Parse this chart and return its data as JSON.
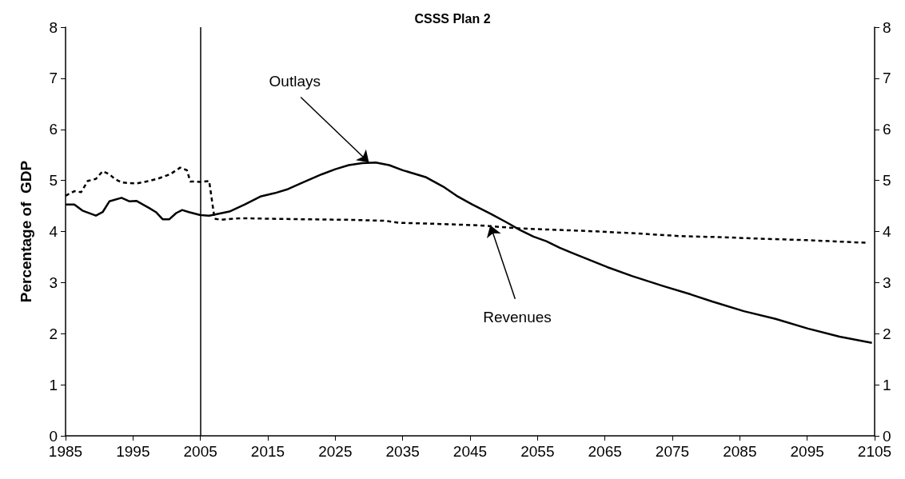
{
  "chart_data": {
    "type": "line",
    "title": "CSSS Plan 2",
    "ylabel": "Percentage of  GDP",
    "xlim": [
      1985,
      2105
    ],
    "xticks": [
      1985,
      1995,
      2005,
      2015,
      2025,
      2035,
      2045,
      2055,
      2065,
      2075,
      2085,
      2095,
      2105
    ],
    "ylim": [
      0,
      8
    ],
    "yticks": [
      0,
      1,
      2,
      3,
      4,
      5,
      6,
      7,
      8
    ],
    "y2lim": [
      0,
      8
    ],
    "y2ticks": [
      0,
      1,
      2,
      3,
      4,
      5,
      6,
      7,
      8
    ],
    "grid": false,
    "marker": "none",
    "ref_lines": [
      {
        "axis": "x",
        "value": 2005,
        "color": "#000000"
      }
    ],
    "annotations": [
      {
        "text": "Outlays",
        "x": 2030,
        "y": 5.35
      },
      {
        "text": "Revenues",
        "x": 2048,
        "y": 4.12
      }
    ],
    "series": [
      {
        "color": "#000000",
        "line_style": "solid",
        "x": [
          1985,
          1986.3,
          1987.5,
          1989.5,
          1990.5,
          1991.5,
          1993.3,
          1994.5,
          1995.5,
          1997.4,
          1998.4,
          1999.4,
          2000.4,
          2001.4,
          2002.3,
          2003.3,
          2005,
          2006.3,
          2009.3,
          2011.6,
          2014,
          2016,
          2018,
          2020,
          2023,
          2025,
          2027,
          2029,
          2031,
          2033,
          2035,
          2038.5,
          2041,
          2043,
          2045.3,
          2048,
          2050.4,
          2052.4,
          2054.4,
          2056.3,
          2058.3,
          2060.3,
          2065.4,
          2069,
          2073.7,
          2077.7,
          2080.9,
          2085.6,
          2090.3,
          2095.1,
          2099.8,
          2104.6
        ],
        "values": [
          4.53,
          4.53,
          4.41,
          4.31,
          4.38,
          4.59,
          4.66,
          4.59,
          4.6,
          4.46,
          4.38,
          4.24,
          4.24,
          4.36,
          4.42,
          4.38,
          4.32,
          4.31,
          4.39,
          4.53,
          4.69,
          4.75,
          4.83,
          4.95,
          5.12,
          5.22,
          5.3,
          5.34,
          5.35,
          5.3,
          5.2,
          5.06,
          4.88,
          4.7,
          4.53,
          4.35,
          4.18,
          4.03,
          3.9,
          3.81,
          3.68,
          3.57,
          3.3,
          3.13,
          2.93,
          2.77,
          2.63,
          2.44,
          2.29,
          2.1,
          1.94,
          1.82
        ]
      },
      {
        "color": "#000000",
        "line_style": "dashed",
        "x": [
          1985,
          1986.3,
          1987.3,
          1988.3,
          1989.5,
          1990.5,
          1991.5,
          1992.3,
          1993.3,
          1995.5,
          1997.4,
          1998.6,
          2000.5,
          2002,
          2003,
          2003.5,
          2005.1,
          2006.3,
          2007.1,
          2008,
          2010.9,
          2020,
          2026.6,
          2032.5,
          2034.4,
          2040,
          2046.4,
          2052.4,
          2058.3,
          2064.2,
          2070,
          2076.1,
          2082,
          2088,
          2095,
          2103.7
        ],
        "values": [
          4.7,
          4.79,
          4.77,
          4.99,
          5.03,
          5.18,
          5.12,
          5.03,
          4.96,
          4.94,
          4.99,
          5.03,
          5.12,
          5.25,
          5.2,
          4.98,
          4.97,
          4.99,
          4.25,
          4.23,
          4.26,
          4.24,
          4.23,
          4.21,
          4.17,
          4.15,
          4.12,
          4.06,
          4.03,
          4.0,
          3.96,
          3.91,
          3.89,
          3.86,
          3.83,
          3.78
        ]
      }
    ]
  }
}
